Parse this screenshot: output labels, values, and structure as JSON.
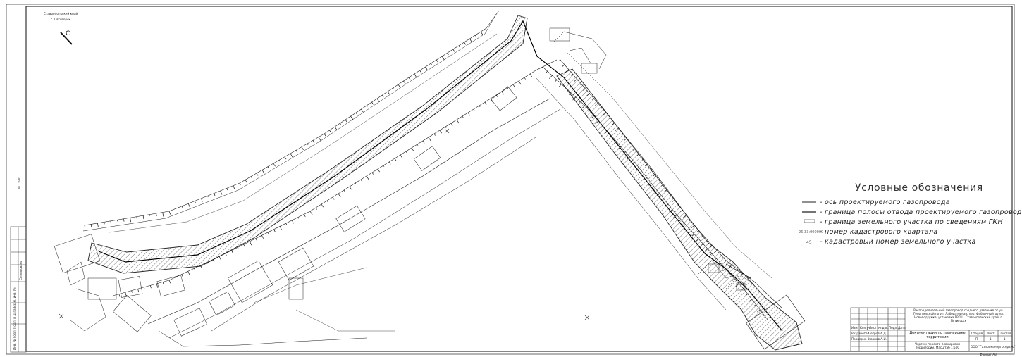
{
  "north_arrow": {
    "line1": "Ставропольский край",
    "line2": "г. Пятигорск",
    "letter": "С"
  },
  "side_stamp": {
    "scale": "М 1:500",
    "vertical_label": "Согласовано",
    "bottom_label": "Инв. № подл.  Подп. и дата  Взам. инв. №"
  },
  "legend": {
    "title": "Условные обозначения",
    "items": [
      {
        "text": "- ось проектируемого газопровода"
      },
      {
        "text": "- граница полосы отвода проектируемого газопровода"
      },
      {
        "text": "- граница земельного участка по сведениям ГКН"
      },
      {
        "symbol": "26:33:000000",
        "text": "- номер кадастрового квартала"
      },
      {
        "symbol": "45",
        "text": "- кадастровый номер земельного участка"
      }
    ]
  },
  "title_block": {
    "project": "Распределительный газопровод среднего давления от ул. Георгиевской по ул. Лабораторная, пер. Фабричный до ул. Новоподкумка, установка ГРПШ. Ставропольский край, г. Пятигорск",
    "document": "Документация по планировке территории",
    "drawing": "Чертеж проекта планировки территории. Масштаб 1:500",
    "company": "ООО \"Газпромэнергосервис\"",
    "stage_header": [
      "Стадия",
      "Лист",
      "Листов"
    ],
    "stage_values": [
      "П",
      "1",
      "1"
    ],
    "role1": "Разработал",
    "role2": "Проверил",
    "name1": "Петров А.Д.",
    "name2": "Иванов А.И.",
    "col_headers": [
      "Изм.",
      "Кол.уч",
      "Лист",
      "№ док.",
      "Подп.",
      "Дата"
    ],
    "format": "Формат А3"
  },
  "colors": {
    "line": "#1a1a1a",
    "hatch": "#555555",
    "frame": "#333333"
  }
}
